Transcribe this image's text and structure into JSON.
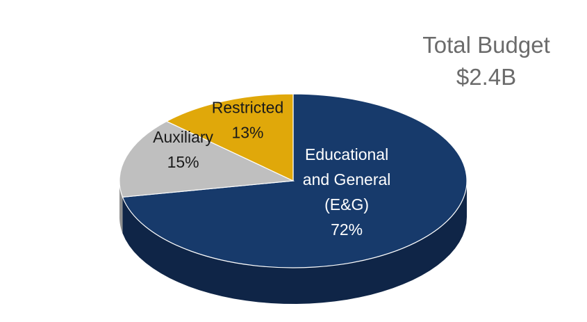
{
  "chart_data": {
    "type": "pie",
    "title_lines": [
      "Total Budget",
      "$2.4B"
    ],
    "slices": [
      {
        "label_lines": [
          "Educational",
          "and General",
          "(E&G)"
        ],
        "value": 72,
        "value_label": "72%",
        "color": "#173a6b",
        "side_color": "#0f2547",
        "text_color": "#ffffff"
      },
      {
        "label_lines": [
          "Auxiliary"
        ],
        "value": 15,
        "value_label": "15%",
        "color": "#bfbfbf",
        "side_color": "#8f8f8f",
        "text_color": "#1a1a1a"
      },
      {
        "label_lines": [
          "Restricted"
        ],
        "value": 13,
        "value_label": "13%",
        "color": "#e0a80a",
        "side_color": "#a67c06",
        "text_color": "#1a1a1a"
      }
    ],
    "style": "3d"
  }
}
